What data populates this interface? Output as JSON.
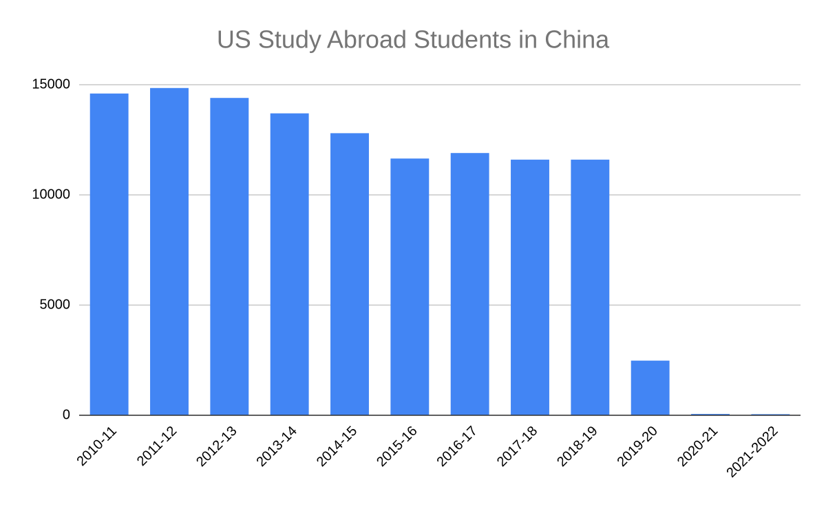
{
  "chart_data": {
    "type": "bar",
    "title": "US Study Abroad Students in China",
    "categories": [
      "2010-11",
      "2011-12",
      "2012-13",
      "2013-14",
      "2014-15",
      "2015-16",
      "2016-17",
      "2017-18",
      "2018-19",
      "2019-20",
      "2020-21",
      "2021-2022"
    ],
    "values": [
      14600,
      14850,
      14400,
      13700,
      12800,
      11650,
      11900,
      11600,
      11600,
      2480,
      60,
      50
    ],
    "color": "#4285f4",
    "ylim": [
      0,
      15000
    ],
    "yticks": [
      0,
      5000,
      10000,
      15000
    ],
    "grid": true
  }
}
